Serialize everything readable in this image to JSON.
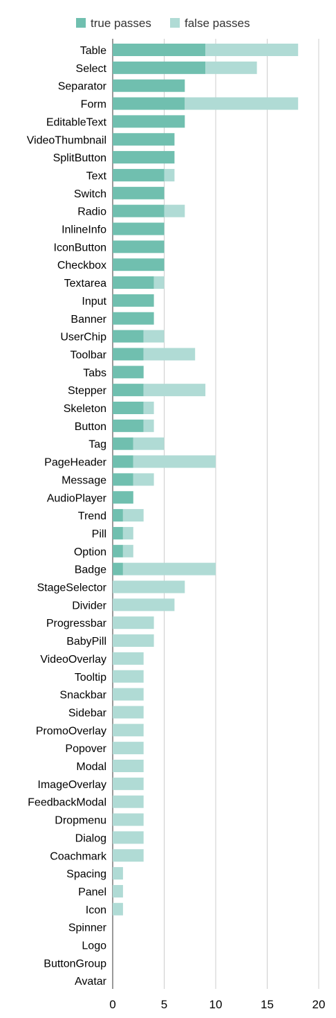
{
  "chart_data": {
    "type": "bar",
    "orientation": "horizontal",
    "stacked": true,
    "categories": [
      "Table",
      "Select",
      "Separator",
      "Form",
      "EditableText",
      "VideoThumbnail",
      "SplitButton",
      "Text",
      "Switch",
      "Radio",
      "InlineInfo",
      "IconButton",
      "Checkbox",
      "Textarea",
      "Input",
      "Banner",
      "UserChip",
      "Toolbar",
      "Tabs",
      "Stepper",
      "Skeleton",
      "Button",
      "Tag",
      "PageHeader",
      "Message",
      "AudioPlayer",
      "Trend",
      "Pill",
      "Option",
      "Badge",
      "StageSelector",
      "Divider",
      "Progressbar",
      "BabyPill",
      "VideoOverlay",
      "Tooltip",
      "Snackbar",
      "Sidebar",
      "PromoOverlay",
      "Popover",
      "Modal",
      "ImageOverlay",
      "FeedbackModal",
      "Dropmenu",
      "Dialog",
      "Coachmark",
      "Spacing",
      "Panel",
      "Icon",
      "Spinner",
      "Logo",
      "ButtonGroup",
      "Avatar"
    ],
    "series": [
      {
        "name": "true passes",
        "color": "#70bfaf",
        "values": [
          9,
          9,
          7,
          7,
          7,
          6,
          6,
          5,
          5,
          5,
          5,
          5,
          5,
          4,
          4,
          4,
          3,
          3,
          3,
          3,
          3,
          3,
          2,
          2,
          2,
          2,
          1,
          1,
          1,
          1,
          0,
          0,
          0,
          0,
          0,
          0,
          0,
          0,
          0,
          0,
          0,
          0,
          0,
          0,
          0,
          0,
          0,
          0,
          0,
          0,
          0,
          0,
          0
        ]
      },
      {
        "name": "false passes",
        "color": "#b0dbd5",
        "values": [
          9,
          5,
          0,
          11,
          0,
          0,
          0,
          1,
          0,
          2,
          0,
          0,
          0,
          1,
          0,
          0,
          2,
          5,
          0,
          6,
          1,
          1,
          3,
          8,
          2,
          0,
          2,
          1,
          1,
          9,
          7,
          6,
          4,
          4,
          3,
          3,
          3,
          3,
          3,
          3,
          3,
          3,
          3,
          3,
          3,
          3,
          1,
          1,
          1,
          0,
          0,
          0,
          0
        ]
      }
    ],
    "xlim": [
      0,
      20
    ],
    "xticks": [
      0,
      5,
      10,
      15,
      20
    ],
    "grid": true,
    "legend_position": "top"
  }
}
